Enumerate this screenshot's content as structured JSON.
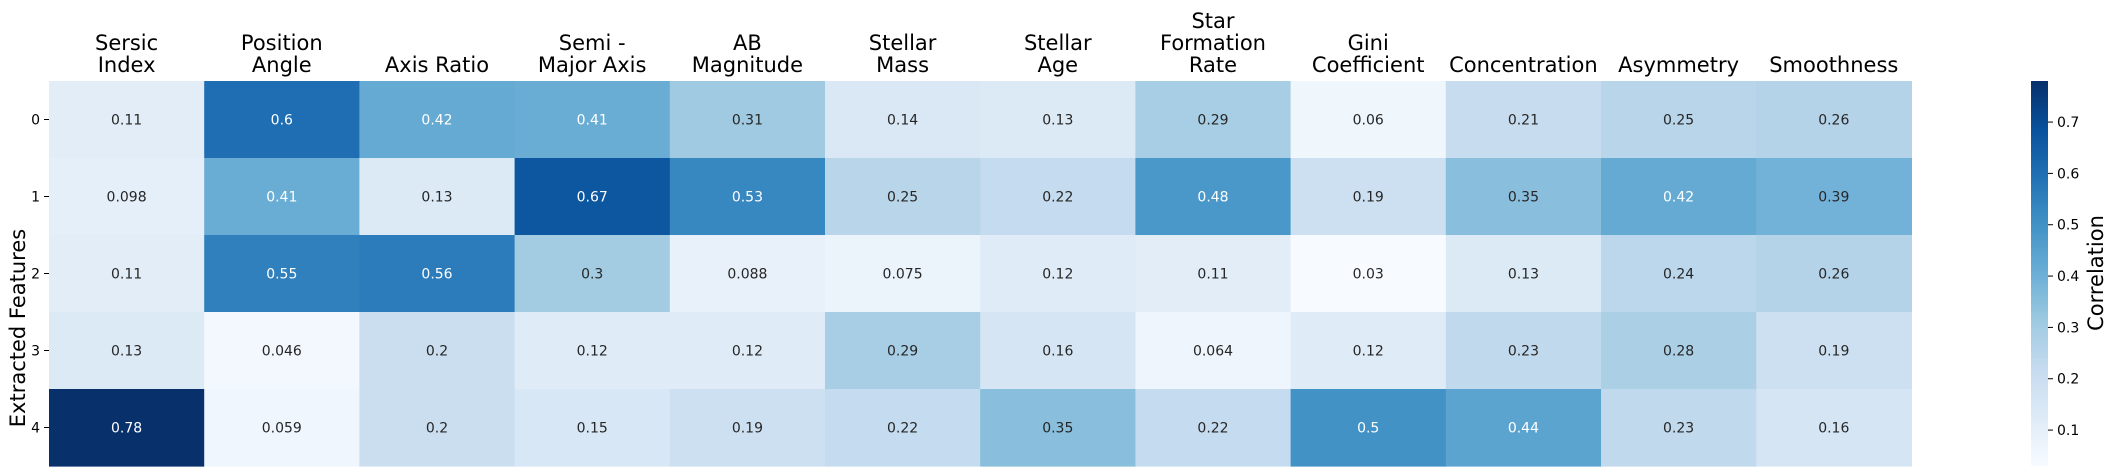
{
  "chart_data": {
    "type": "heatmap",
    "columns": [
      [
        "Sersic",
        "Index"
      ],
      [
        "Position",
        "Angle"
      ],
      [
        "Axis Ratio"
      ],
      [
        "Semi -",
        "Major Axis"
      ],
      [
        "AB",
        "Magnitude"
      ],
      [
        "Stellar",
        "Mass"
      ],
      [
        "Stellar",
        "Age"
      ],
      [
        "Star",
        "Formation",
        "Rate"
      ],
      [
        "Gini",
        "Coefficient"
      ],
      [
        "Concentration"
      ],
      [
        "Asymmetry"
      ],
      [
        "Smoothness"
      ]
    ],
    "rows": [
      "0",
      "1",
      "2",
      "3",
      "4"
    ],
    "values": [
      [
        0.11,
        0.6,
        0.42,
        0.41,
        0.31,
        0.14,
        0.13,
        0.29,
        0.06,
        0.21,
        0.25,
        0.26
      ],
      [
        0.098,
        0.41,
        0.13,
        0.67,
        0.53,
        0.25,
        0.22,
        0.48,
        0.19,
        0.35,
        0.42,
        0.39
      ],
      [
        0.11,
        0.55,
        0.56,
        0.3,
        0.088,
        0.075,
        0.12,
        0.11,
        0.03,
        0.13,
        0.24,
        0.26
      ],
      [
        0.13,
        0.046,
        0.2,
        0.12,
        0.12,
        0.29,
        0.16,
        0.064,
        0.12,
        0.23,
        0.28,
        0.19
      ],
      [
        0.78,
        0.059,
        0.2,
        0.15,
        0.19,
        0.22,
        0.35,
        0.22,
        0.5,
        0.44,
        0.23,
        0.16
      ]
    ],
    "value_labels": [
      [
        "0.11",
        "0.6",
        "0.42",
        "0.41",
        "0.31",
        "0.14",
        "0.13",
        "0.29",
        "0.06",
        "0.21",
        "0.25",
        "0.26"
      ],
      [
        "0.098",
        "0.41",
        "0.13",
        "0.67",
        "0.53",
        "0.25",
        "0.22",
        "0.48",
        "0.19",
        "0.35",
        "0.42",
        "0.39"
      ],
      [
        "0.11",
        "0.55",
        "0.56",
        "0.3",
        "0.088",
        "0.075",
        "0.12",
        "0.11",
        "0.03",
        "0.13",
        "0.24",
        "0.26"
      ],
      [
        "0.13",
        "0.046",
        "0.2",
        "0.12",
        "0.12",
        "0.29",
        "0.16",
        "0.064",
        "0.12",
        "0.23",
        "0.28",
        "0.19"
      ],
      [
        "0.78",
        "0.059",
        "0.2",
        "0.15",
        "0.19",
        "0.22",
        "0.35",
        "0.22",
        "0.5",
        "0.44",
        "0.23",
        "0.16"
      ]
    ],
    "ylabel": "Extracted Features",
    "colorbar": {
      "label": "Correlation",
      "range": [
        0.03,
        0.78
      ],
      "ticks": [
        "0.1",
        "0.2",
        "0.3",
        "0.4",
        "0.5",
        "0.6",
        "0.7"
      ],
      "tick_values": [
        0.1,
        0.2,
        0.3,
        0.4,
        0.5,
        0.6,
        0.7
      ],
      "colormap": "Blues",
      "low_color": "#f7fbff",
      "high_color": "#08306b"
    },
    "text_colors": {
      "dark": "#262626",
      "light": "#ffffff"
    }
  }
}
